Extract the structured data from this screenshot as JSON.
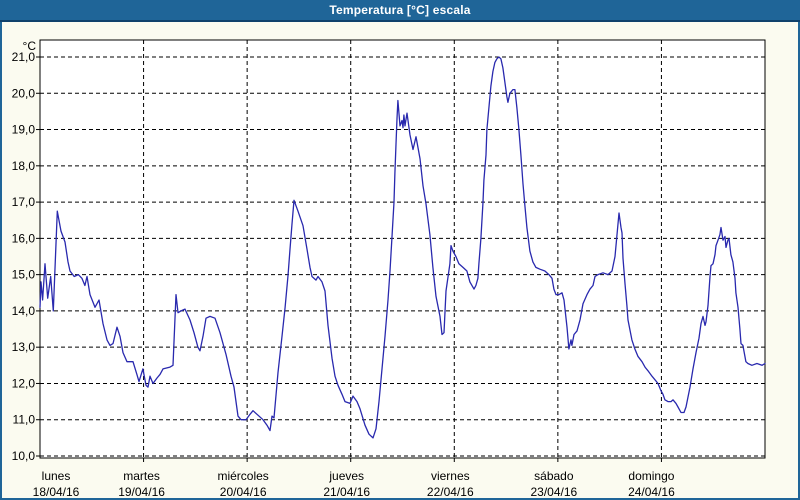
{
  "window": {
    "title": "Temperatura [°C] escala",
    "title_bar_color": "#1f6598",
    "title_bar_edge_color": "#0f416b",
    "border_color": "#1f6598",
    "content_background": "#fbfbf0"
  },
  "chart_data": {
    "type": "line",
    "title": "Temperatura [°C] escala",
    "y_unit": "°C",
    "ylim": [
      10,
      21
    ],
    "y_tick_step": 1,
    "y_ticks": [
      "21,0",
      "20,0",
      "19,0",
      "18,0",
      "17,0",
      "16,0",
      "15,0",
      "14,0",
      "13,0",
      "12,0",
      "11,0",
      "10,0"
    ],
    "x_range_days": 7,
    "x_days": [
      {
        "name": "lunes",
        "date": "18/04/16"
      },
      {
        "name": "martes",
        "date": "19/04/16"
      },
      {
        "name": "miércoles",
        "date": "20/04/16"
      },
      {
        "name": "jueves",
        "date": "21/04/16"
      },
      {
        "name": "viernes",
        "date": "22/04/16"
      },
      {
        "name": "sábado",
        "date": "23/04/16"
      },
      {
        "name": "domingo",
        "date": "24/04/16"
      }
    ],
    "grid": "dashed",
    "grid_color": "#000000",
    "axis_color": "#000000",
    "plot_bg": "#ffffff",
    "line_color": "#2929ae",
    "series": [
      {
        "name": "Temperatura",
        "points": [
          [
            0.0,
            14.1
          ],
          [
            0.01,
            14.8
          ],
          [
            0.025,
            14.3
          ],
          [
            0.048,
            15.3
          ],
          [
            0.074,
            14.35
          ],
          [
            0.103,
            14.95
          ],
          [
            0.128,
            14.0
          ],
          [
            0.167,
            16.75
          ],
          [
            0.203,
            16.2
          ],
          [
            0.241,
            15.9
          ],
          [
            0.27,
            15.35
          ],
          [
            0.29,
            15.1
          ],
          [
            0.33,
            14.95
          ],
          [
            0.37,
            15.0
          ],
          [
            0.405,
            14.9
          ],
          [
            0.434,
            14.7
          ],
          [
            0.454,
            14.95
          ],
          [
            0.483,
            14.45
          ],
          [
            0.531,
            14.1
          ],
          [
            0.57,
            14.3
          ],
          [
            0.608,
            13.65
          ],
          [
            0.647,
            13.2
          ],
          [
            0.676,
            13.05
          ],
          [
            0.705,
            13.1
          ],
          [
            0.743,
            13.55
          ],
          [
            0.772,
            13.3
          ],
          [
            0.801,
            12.85
          ],
          [
            0.84,
            12.6
          ],
          [
            0.898,
            12.6
          ],
          [
            0.936,
            12.25
          ],
          [
            0.956,
            12.05
          ],
          [
            0.994,
            12.4
          ],
          [
            1.023,
            11.95
          ],
          [
            1.043,
            11.9
          ],
          [
            1.062,
            12.2
          ],
          [
            1.091,
            12.0
          ],
          [
            1.13,
            12.15
          ],
          [
            1.159,
            12.25
          ],
          [
            1.188,
            12.4
          ],
          [
            1.255,
            12.45
          ],
          [
            1.284,
            12.5
          ],
          [
            1.313,
            14.45
          ],
          [
            1.332,
            13.95
          ],
          [
            1.361,
            14.0
          ],
          [
            1.4,
            14.05
          ],
          [
            1.448,
            13.75
          ],
          [
            1.487,
            13.4
          ],
          [
            1.525,
            13.0
          ],
          [
            1.545,
            12.9
          ],
          [
            1.574,
            13.3
          ],
          [
            1.603,
            13.8
          ],
          [
            1.641,
            13.85
          ],
          [
            1.69,
            13.8
          ],
          [
            1.738,
            13.4
          ],
          [
            1.796,
            12.8
          ],
          [
            1.844,
            12.2
          ],
          [
            1.873,
            11.9
          ],
          [
            1.912,
            11.1
          ],
          [
            1.941,
            11.0
          ],
          [
            1.989,
            11.0
          ],
          [
            2.028,
            11.15
          ],
          [
            2.057,
            11.25
          ],
          [
            2.095,
            11.15
          ],
          [
            2.153,
            11.0
          ],
          [
            2.192,
            10.85
          ],
          [
            2.221,
            10.7
          ],
          [
            2.24,
            11.1
          ],
          [
            2.259,
            11.05
          ],
          [
            2.298,
            12.3
          ],
          [
            2.337,
            13.3
          ],
          [
            2.366,
            14.1
          ],
          [
            2.395,
            15.0
          ],
          [
            2.414,
            15.7
          ],
          [
            2.433,
            16.4
          ],
          [
            2.452,
            17.05
          ],
          [
            2.491,
            16.75
          ],
          [
            2.539,
            16.35
          ],
          [
            2.578,
            15.7
          ],
          [
            2.607,
            15.2
          ],
          [
            2.626,
            14.95
          ],
          [
            2.665,
            14.85
          ],
          [
            2.684,
            14.95
          ],
          [
            2.723,
            14.8
          ],
          [
            2.752,
            14.55
          ],
          [
            2.781,
            13.6
          ],
          [
            2.819,
            12.7
          ],
          [
            2.848,
            12.2
          ],
          [
            2.877,
            11.95
          ],
          [
            2.916,
            11.7
          ],
          [
            2.945,
            11.5
          ],
          [
            2.993,
            11.45
          ],
          [
            3.022,
            11.65
          ],
          [
            3.061,
            11.5
          ],
          [
            3.09,
            11.3
          ],
          [
            3.138,
            10.85
          ],
          [
            3.177,
            10.6
          ],
          [
            3.215,
            10.5
          ],
          [
            3.244,
            10.75
          ],
          [
            3.273,
            11.5
          ],
          [
            3.302,
            12.4
          ],
          [
            3.331,
            13.3
          ],
          [
            3.36,
            14.3
          ],
          [
            3.379,
            15.1
          ],
          [
            3.398,
            16.0
          ],
          [
            3.418,
            17.0
          ],
          [
            3.427,
            17.8
          ],
          [
            3.437,
            18.6
          ],
          [
            3.447,
            19.3
          ],
          [
            3.456,
            19.8
          ],
          [
            3.476,
            19.1
          ],
          [
            3.495,
            19.25
          ],
          [
            3.505,
            19.05
          ],
          [
            3.514,
            19.4
          ],
          [
            3.524,
            19.1
          ],
          [
            3.543,
            19.45
          ],
          [
            3.572,
            18.85
          ],
          [
            3.601,
            18.45
          ],
          [
            3.63,
            18.8
          ],
          [
            3.669,
            18.2
          ],
          [
            3.698,
            17.45
          ],
          [
            3.727,
            16.95
          ],
          [
            3.765,
            16.1
          ],
          [
            3.794,
            15.2
          ],
          [
            3.823,
            14.4
          ],
          [
            3.862,
            13.85
          ],
          [
            3.881,
            13.35
          ],
          [
            3.901,
            13.4
          ],
          [
            3.92,
            14.55
          ],
          [
            3.958,
            15.3
          ],
          [
            3.968,
            15.8
          ],
          [
            3.987,
            15.65
          ],
          [
            4.016,
            15.5
          ],
          [
            4.045,
            15.3
          ],
          [
            4.084,
            15.2
          ],
          [
            4.122,
            15.1
          ],
          [
            4.151,
            14.8
          ],
          [
            4.19,
            14.6
          ],
          [
            4.209,
            14.7
          ],
          [
            4.228,
            14.9
          ],
          [
            4.238,
            15.3
          ],
          [
            4.257,
            16.0
          ],
          [
            4.277,
            17.0
          ],
          [
            4.286,
            17.6
          ],
          [
            4.306,
            18.3
          ],
          [
            4.315,
            19.0
          ],
          [
            4.334,
            19.6
          ],
          [
            4.354,
            20.2
          ],
          [
            4.373,
            20.6
          ],
          [
            4.392,
            20.85
          ],
          [
            4.411,
            20.95
          ],
          [
            4.431,
            21.0
          ],
          [
            4.45,
            20.95
          ],
          [
            4.469,
            20.7
          ],
          [
            4.489,
            20.3
          ],
          [
            4.508,
            19.9
          ],
          [
            4.518,
            19.75
          ],
          [
            4.537,
            20.0
          ],
          [
            4.566,
            20.1
          ],
          [
            4.585,
            20.1
          ],
          [
            4.605,
            19.6
          ],
          [
            4.624,
            19.0
          ],
          [
            4.643,
            18.3
          ],
          [
            4.663,
            17.5
          ],
          [
            4.682,
            16.9
          ],
          [
            4.701,
            16.3
          ],
          [
            4.73,
            15.65
          ],
          [
            4.759,
            15.35
          ],
          [
            4.788,
            15.2
          ],
          [
            4.827,
            15.15
          ],
          [
            4.875,
            15.1
          ],
          [
            4.914,
            15.0
          ],
          [
            4.943,
            14.9
          ],
          [
            4.962,
            14.6
          ],
          [
            4.982,
            14.45
          ],
          [
            5.011,
            14.45
          ],
          [
            5.04,
            14.5
          ],
          [
            5.059,
            14.3
          ],
          [
            5.088,
            13.55
          ],
          [
            5.107,
            12.95
          ],
          [
            5.127,
            13.2
          ],
          [
            5.136,
            13.05
          ],
          [
            5.156,
            13.35
          ],
          [
            5.185,
            13.45
          ],
          [
            5.214,
            13.75
          ],
          [
            5.243,
            14.2
          ],
          [
            5.281,
            14.45
          ],
          [
            5.31,
            14.6
          ],
          [
            5.339,
            14.7
          ],
          [
            5.359,
            14.95
          ],
          [
            5.388,
            15.0
          ],
          [
            5.436,
            15.05
          ],
          [
            5.484,
            15.0
          ],
          [
            5.523,
            15.1
          ],
          [
            5.552,
            15.5
          ],
          [
            5.571,
            16.1
          ],
          [
            5.59,
            16.7
          ],
          [
            5.61,
            16.3
          ],
          [
            5.619,
            16.15
          ],
          [
            5.629,
            15.45
          ],
          [
            5.648,
            14.75
          ],
          [
            5.667,
            14.15
          ],
          [
            5.677,
            13.75
          ],
          [
            5.715,
            13.2
          ],
          [
            5.744,
            12.95
          ],
          [
            5.773,
            12.75
          ],
          [
            5.812,
            12.6
          ],
          [
            5.841,
            12.45
          ],
          [
            5.87,
            12.35
          ],
          [
            5.909,
            12.2
          ],
          [
            5.938,
            12.1
          ],
          [
            5.967,
            12.0
          ],
          [
            5.996,
            11.8
          ],
          [
            6.015,
            11.7
          ],
          [
            6.034,
            11.55
          ],
          [
            6.063,
            11.5
          ],
          [
            6.092,
            11.5
          ],
          [
            6.112,
            11.55
          ],
          [
            6.141,
            11.45
          ],
          [
            6.16,
            11.35
          ],
          [
            6.189,
            11.2
          ],
          [
            6.218,
            11.2
          ],
          [
            6.237,
            11.35
          ],
          [
            6.276,
            11.9
          ],
          [
            6.305,
            12.4
          ],
          [
            6.334,
            12.85
          ],
          [
            6.363,
            13.25
          ],
          [
            6.382,
            13.65
          ],
          [
            6.401,
            13.85
          ],
          [
            6.421,
            13.6
          ],
          [
            6.43,
            13.7
          ],
          [
            6.45,
            14.15
          ],
          [
            6.469,
            14.95
          ],
          [
            6.479,
            15.25
          ],
          [
            6.498,
            15.3
          ],
          [
            6.517,
            15.55
          ],
          [
            6.527,
            15.8
          ],
          [
            6.546,
            15.95
          ],
          [
            6.565,
            16.1
          ],
          [
            6.575,
            16.3
          ],
          [
            6.594,
            15.95
          ],
          [
            6.614,
            16.05
          ],
          [
            6.623,
            15.75
          ],
          [
            6.642,
            15.95
          ],
          [
            6.652,
            16.0
          ],
          [
            6.671,
            15.55
          ],
          [
            6.69,
            15.35
          ],
          [
            6.71,
            14.9
          ],
          [
            6.719,
            14.5
          ],
          [
            6.739,
            14.1
          ],
          [
            6.758,
            13.5
          ],
          [
            6.768,
            13.1
          ],
          [
            6.787,
            13.05
          ],
          [
            6.806,
            12.75
          ],
          [
            6.816,
            12.6
          ],
          [
            6.835,
            12.55
          ],
          [
            6.874,
            12.5
          ],
          [
            6.922,
            12.55
          ],
          [
            6.971,
            12.5
          ],
          [
            7.0,
            12.55
          ]
        ]
      }
    ]
  }
}
